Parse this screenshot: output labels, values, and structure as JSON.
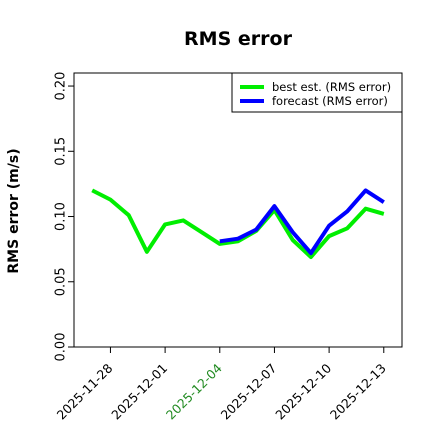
{
  "chart_data": {
    "type": "line",
    "title": "RMS error",
    "ylabel": "RMS error (m/s)",
    "xlabel": "",
    "ylim": [
      0.0,
      0.21
    ],
    "yticks": [
      "0.00",
      "0.05",
      "0.10",
      "0.15",
      "0.20"
    ],
    "xlim": [
      "2025-11-26",
      "2025-12-14"
    ],
    "xticks": [
      {
        "label": "2025-11-28",
        "color": "#000000"
      },
      {
        "label": "2025-12-01",
        "color": "#000000"
      },
      {
        "label": "2025-12-04",
        "color": "#228b22"
      },
      {
        "label": "2025-12-07",
        "color": "#000000"
      },
      {
        "label": "2025-12-10",
        "color": "#000000"
      },
      {
        "label": "2025-12-13",
        "color": "#000000"
      }
    ],
    "x": [
      "2025-11-27",
      "2025-11-28",
      "2025-11-29",
      "2025-11-30",
      "2025-12-01",
      "2025-12-02",
      "2025-12-03",
      "2025-12-04",
      "2025-12-05",
      "2025-12-06",
      "2025-12-07",
      "2025-12-08",
      "2025-12-09",
      "2025-12-10",
      "2025-12-11",
      "2025-12-12",
      "2025-12-13"
    ],
    "series": [
      {
        "name": "best est. (RMS error)",
        "color": "#00ee00",
        "values": [
          0.12,
          0.113,
          0.101,
          0.073,
          0.094,
          0.097,
          0.088,
          0.079,
          0.081,
          0.089,
          0.105,
          0.082,
          0.069,
          0.085,
          0.091,
          0.106,
          0.102
        ]
      },
      {
        "name": "forecast (RMS error)",
        "color": "#0000ff",
        "values": [
          null,
          null,
          null,
          null,
          null,
          null,
          null,
          0.081,
          0.083,
          0.09,
          0.108,
          0.088,
          0.072,
          0.093,
          0.104,
          0.12,
          0.111
        ]
      }
    ],
    "grid": false,
    "legend_position": "top-right"
  }
}
